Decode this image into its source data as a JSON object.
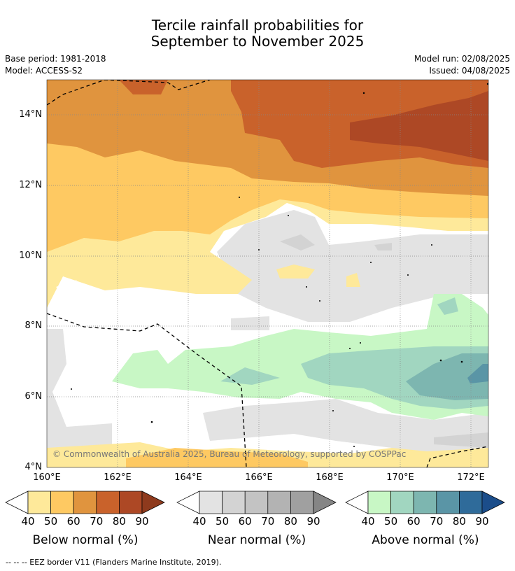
{
  "header": {
    "title_line1": "Tercile rainfall probabilities for",
    "title_line2": "September to November 2025",
    "base_period": "Base period: 1981-2018",
    "model": "Model: ACCESS-S2",
    "model_run": "Model run: 02/08/2025",
    "issued": "Issued: 04/08/2025"
  },
  "map": {
    "lat_labels": [
      "14°N",
      "12°N",
      "10°N",
      "8°N",
      "6°N",
      "4°N"
    ],
    "lon_labels": [
      "160°E",
      "162°E",
      "164°E",
      "166°E",
      "168°E",
      "170°E",
      "172°E"
    ],
    "copyright": "© Commonwealth of Australia 2025, Bureau of Meteorology, supported by COSPPac"
  },
  "colorbars": {
    "ticks": [
      "40",
      "50",
      "60",
      "70",
      "80",
      "90"
    ],
    "below": {
      "label": "Below normal (%)",
      "colors": [
        "#fee99a",
        "#fec962",
        "#e0943e",
        "#c9622b",
        "#ad4825",
        "#8e3a1d"
      ]
    },
    "near": {
      "label": "Near normal (%)",
      "colors": [
        "#e3e3e3",
        "#d3d3d3",
        "#c3c3c3",
        "#b3b3b3",
        "#a0a0a0",
        "#858585"
      ]
    },
    "above": {
      "label": "Above normal (%)",
      "colors": [
        "#c8f7c5",
        "#a1d6c0",
        "#7db6b0",
        "#5a95a6",
        "#2f6b9a",
        "#1b4d8a"
      ]
    }
  },
  "footer": {
    "eez_note": "--  --  -- EEZ border V11 (Flanders Marine Institute, 2019)."
  }
}
